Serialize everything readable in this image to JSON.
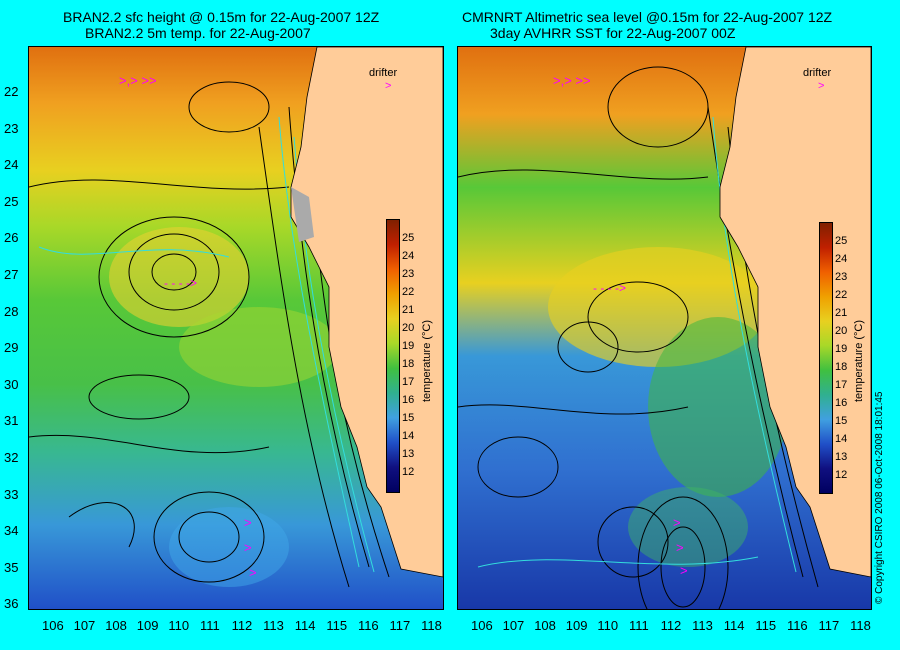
{
  "left_panel": {
    "title_line1": "BRAN2.2 sfc height @ 0.15m for 22-Aug-2007 12Z",
    "title_line2": "BRAN2.2 5m temp. for 22-Aug-2007",
    "drifter_label": "drifter",
    "colorbar_label": "temperature (°C)"
  },
  "right_panel": {
    "title_line1": "CMRNRT Altimetric sea level  @0.15m  for 22-Aug-2007 12Z",
    "title_line2": "3day AVHRR SST for 22-Aug-2007 00Z",
    "drifter_label": "drifter",
    "colorbar_label": "temperature (°C)"
  },
  "lat_ticks": [
    "22",
    "23",
    "24",
    "25",
    "26",
    "27",
    "28",
    "29",
    "30",
    "31",
    "32",
    "33",
    "34",
    "35",
    "36"
  ],
  "lon_ticks": [
    "106",
    "107",
    "108",
    "109",
    "110",
    "111",
    "112",
    "113",
    "114",
    "115",
    "116",
    "117",
    "118"
  ],
  "colorbar_ticks": [
    "25",
    "24",
    "23",
    "22",
    "21",
    "20",
    "19",
    "18",
    "17",
    "16",
    "15",
    "14",
    "13",
    "12"
  ],
  "colors": {
    "background": "#00ffff",
    "land": "#ffcc99",
    "drifter": "#ff00ff"
  },
  "copyright": "© Copyright CSIRO 2008    06-Oct-2008 18:01:45"
}
